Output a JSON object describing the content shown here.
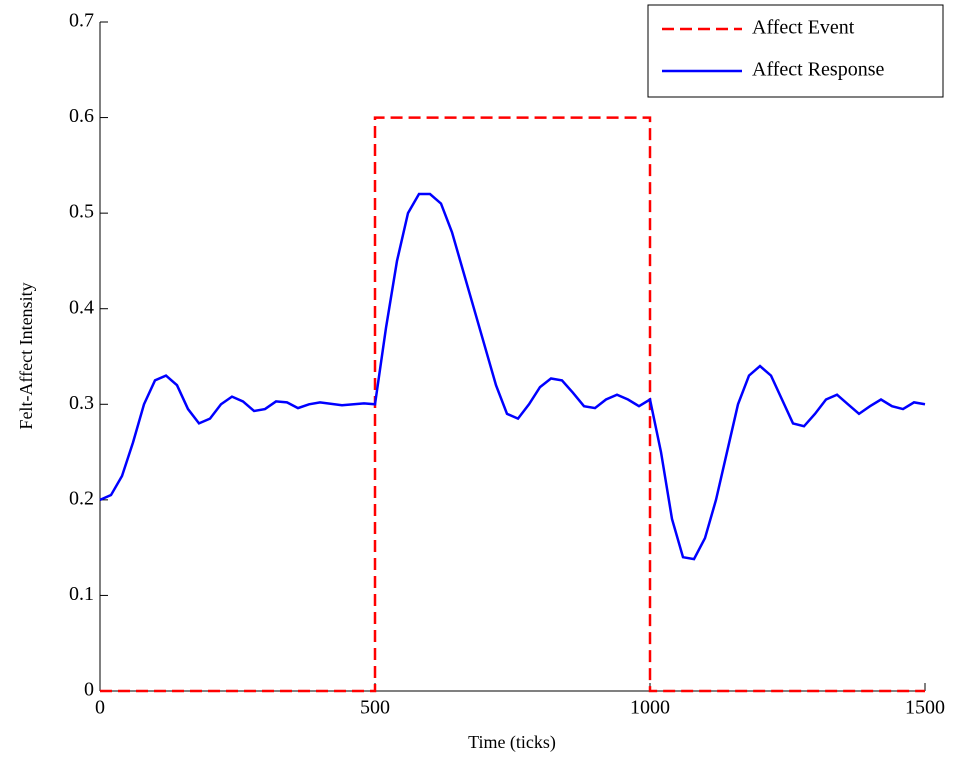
{
  "chart_data": {
    "type": "line",
    "xlabel": "Time (ticks)",
    "ylabel": "Felt-Affect Intensity",
    "xlim": [
      0,
      1500
    ],
    "xticks": [
      0,
      500,
      1000,
      1500
    ],
    "ylim": [
      0,
      0.7
    ],
    "yticks": [
      0,
      0.1,
      0.2,
      0.3,
      0.4,
      0.5,
      0.6,
      0.7
    ],
    "legend": "upper right",
    "series": [
      {
        "name": "Affect Event",
        "color": "#ff0000",
        "style": "dashed",
        "x": [
          0,
          500,
          500,
          1000,
          1000,
          1500
        ],
        "values": [
          0,
          0,
          0.6,
          0.6,
          0,
          0
        ]
      },
      {
        "name": "Affect Response",
        "color": "#0000ff",
        "style": "solid",
        "x": [
          0,
          20,
          40,
          60,
          80,
          100,
          120,
          140,
          160,
          180,
          200,
          220,
          240,
          260,
          280,
          300,
          320,
          340,
          360,
          380,
          400,
          440,
          480,
          500,
          520,
          540,
          560,
          580,
          600,
          620,
          640,
          660,
          680,
          700,
          720,
          740,
          760,
          780,
          800,
          820,
          840,
          860,
          880,
          900,
          920,
          940,
          960,
          980,
          1000,
          1020,
          1040,
          1060,
          1080,
          1100,
          1120,
          1140,
          1160,
          1180,
          1200,
          1220,
          1240,
          1260,
          1280,
          1300,
          1320,
          1340,
          1360,
          1380,
          1400,
          1420,
          1440,
          1460,
          1480,
          1500
        ],
        "values": [
          0.2,
          0.205,
          0.225,
          0.26,
          0.3,
          0.325,
          0.33,
          0.32,
          0.295,
          0.28,
          0.285,
          0.3,
          0.308,
          0.303,
          0.293,
          0.295,
          0.303,
          0.302,
          0.296,
          0.3,
          0.302,
          0.299,
          0.301,
          0.3,
          0.38,
          0.45,
          0.5,
          0.52,
          0.52,
          0.51,
          0.48,
          0.44,
          0.4,
          0.36,
          0.32,
          0.29,
          0.285,
          0.3,
          0.318,
          0.327,
          0.325,
          0.312,
          0.298,
          0.296,
          0.305,
          0.31,
          0.305,
          0.298,
          0.305,
          0.25,
          0.18,
          0.14,
          0.138,
          0.16,
          0.2,
          0.25,
          0.3,
          0.33,
          0.34,
          0.33,
          0.305,
          0.28,
          0.277,
          0.29,
          0.305,
          0.31,
          0.3,
          0.29,
          0.298,
          0.305,
          0.298,
          0.295,
          0.302,
          0.3
        ]
      }
    ]
  }
}
